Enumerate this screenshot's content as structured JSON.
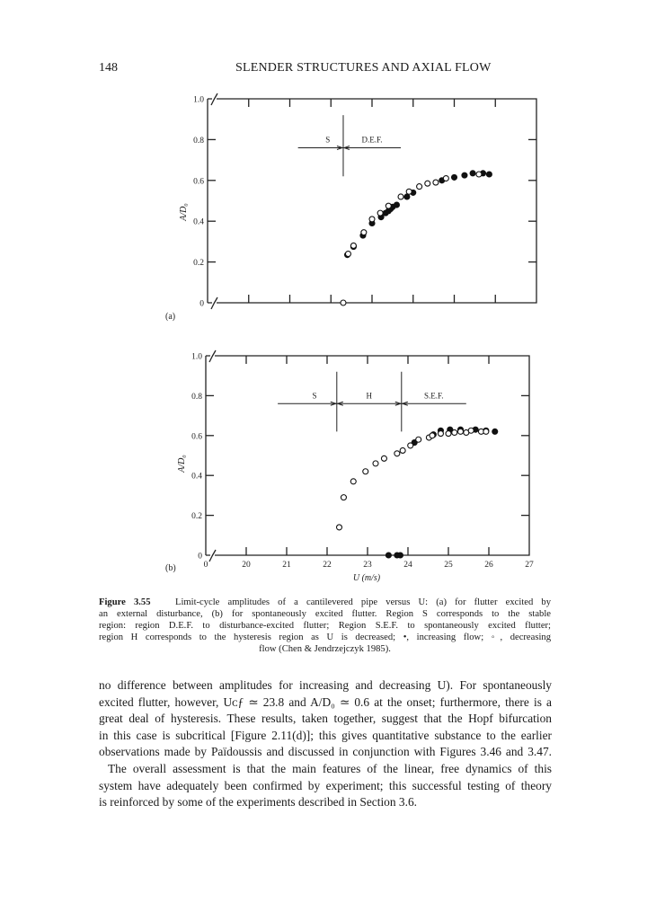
{
  "header": {
    "page_number": "148",
    "running_title": "SLENDER STRUCTURES AND AXIAL FLOW"
  },
  "chart_data": [
    {
      "type": "scatter",
      "panel_label": "(a)",
      "ylabel": "A/D₀",
      "xlabel": "",
      "x_tick_labels": [],
      "y_tick_labels": [
        "0",
        "0.2",
        "0.4",
        "0.6",
        "0.8",
        "1.0"
      ],
      "xlim": [
        19,
        27
      ],
      "ylim": [
        0,
        1.0
      ],
      "x_axis_break": true,
      "y_axis_break": true,
      "regions": [
        {
          "label": "S"
        },
        {
          "label": "D.E.F."
        }
      ],
      "region_boundaries": [
        22.3
      ],
      "region_extent": [
        21.2,
        23.7
      ],
      "series": [
        {
          "marker": "filled",
          "points": [
            [
              22.4,
              0.235
            ],
            [
              22.55,
              0.275
            ],
            [
              22.78,
              0.33
            ],
            [
              23.0,
              0.39
            ],
            [
              23.22,
              0.42
            ],
            [
              23.33,
              0.44
            ],
            [
              23.4,
              0.45
            ],
            [
              23.45,
              0.46
            ],
            [
              23.5,
              0.47
            ],
            [
              23.6,
              0.48
            ],
            [
              23.85,
              0.52
            ],
            [
              24.0,
              0.54
            ],
            [
              24.7,
              0.6
            ],
            [
              25.0,
              0.615
            ],
            [
              25.25,
              0.625
            ],
            [
              25.45,
              0.635
            ],
            [
              25.7,
              0.635
            ],
            [
              25.85,
              0.63
            ]
          ]
        },
        {
          "marker": "open",
          "points": [
            [
              22.3,
              0.0
            ],
            [
              22.42,
              0.24
            ],
            [
              22.55,
              0.28
            ],
            [
              22.8,
              0.345
            ],
            [
              23.0,
              0.41
            ],
            [
              23.2,
              0.44
            ],
            [
              23.4,
              0.475
            ],
            [
              23.7,
              0.52
            ],
            [
              23.9,
              0.545
            ],
            [
              24.15,
              0.57
            ],
            [
              24.35,
              0.585
            ],
            [
              24.55,
              0.59
            ],
            [
              24.8,
              0.61
            ],
            [
              25.6,
              0.63
            ]
          ]
        }
      ]
    },
    {
      "type": "scatter",
      "panel_label": "(b)",
      "ylabel": "A/D₀",
      "xlabel": "U (m/s)",
      "x_tick_labels": [
        "0",
        "20",
        "21",
        "22",
        "23",
        "24",
        "25",
        "26",
        "27"
      ],
      "y_tick_labels": [
        "0",
        "0.2",
        "0.4",
        "0.6",
        "0.8",
        "1.0"
      ],
      "xlim": [
        19,
        27
      ],
      "ylim": [
        0,
        1.0
      ],
      "x_axis_break": true,
      "y_axis_break": true,
      "regions": [
        {
          "label": "S"
        },
        {
          "label": "H"
        },
        {
          "label": "S.E.F."
        }
      ],
      "region_boundaries": [
        22.24,
        23.84
      ],
      "region_extent": [
        20.78,
        25.44
      ],
      "series": [
        {
          "marker": "filled",
          "points": [
            [
              23.52,
              0
            ],
            [
              23.73,
              0
            ],
            [
              23.81,
              0
            ],
            [
              24.16,
              0.565
            ],
            [
              24.63,
              0.605
            ],
            [
              24.81,
              0.625
            ],
            [
              25.04,
              0.63
            ],
            [
              25.3,
              0.63
            ],
            [
              25.67,
              0.63
            ],
            [
              25.93,
              0.625
            ],
            [
              26.15,
              0.62
            ]
          ]
        },
        {
          "marker": "open",
          "points": [
            [
              22.3,
              0.14
            ],
            [
              22.41,
              0.29
            ],
            [
              22.65,
              0.37
            ],
            [
              22.95,
              0.42
            ],
            [
              23.2,
              0.46
            ],
            [
              23.41,
              0.485
            ],
            [
              23.73,
              0.51
            ],
            [
              23.87,
              0.525
            ],
            [
              24.06,
              0.55
            ],
            [
              24.26,
              0.58
            ],
            [
              24.52,
              0.59
            ],
            [
              24.6,
              0.6
            ],
            [
              24.81,
              0.61
            ],
            [
              25.0,
              0.61
            ],
            [
              25.15,
              0.615
            ],
            [
              25.3,
              0.62
            ],
            [
              25.44,
              0.615
            ],
            [
              25.56,
              0.625
            ],
            [
              25.81,
              0.62
            ],
            [
              25.93,
              0.62
            ]
          ]
        }
      ]
    }
  ],
  "caption": {
    "label": "Figure 3.55",
    "lines": [
      "Limit-cycle amplitudes of a cantilevered pipe versus U: (a) for flutter excited by",
      "an external disturbance, (b) for spontaneously excited flutter. Region S corresponds to the stable",
      "region: region D.E.F. to disturbance-excited flutter; Region S.E.F. to spontaneously excited flutter;",
      "region H corresponds to the hysteresis region as U is decreased; •, increasing flow; ◦, decreasing",
      "flow (Chen & Jendrzejczyk 1985)."
    ]
  },
  "body": {
    "lines": [
      "no difference between amplitudes for increasing and decreasing U). For spontaneously",
      "excited flutter, however, Uᴄƒ ≃ 23.8 and A/D₀ ≃ 0.6 at the onset; furthermore, there is a",
      "great deal of hysteresis. These results, taken together, suggest that the Hopf bifurcation",
      "in this case is subcritical [Figure 2.11(d)]; this gives quantitative substance to the earlier",
      "observations made by Païdoussis and discussed in conjunction with Figures 3.46 and 3.47.",
      "The overall assessment is that the main features of the linear, free dynamics of this",
      "system have adequately been confirmed by experiment; this successful testing of theory",
      "is reinforced by some of the experiments described in Section 3.6."
    ]
  }
}
